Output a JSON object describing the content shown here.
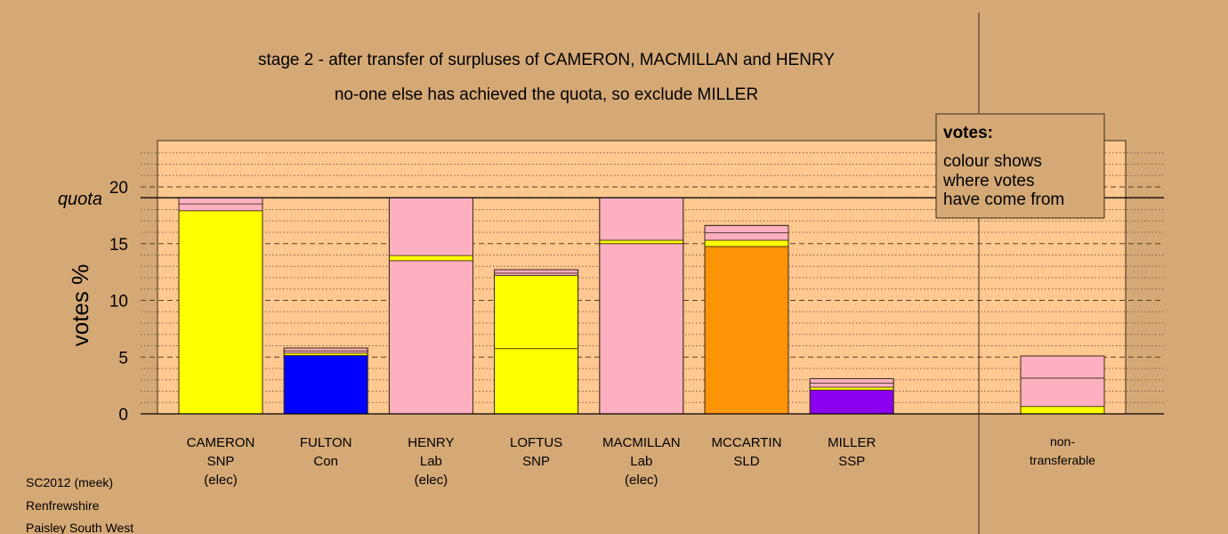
{
  "header": {
    "title": "stage 2 - after transfer of surpluses of CAMERON, MACMILLAN and HENRY",
    "subtitle": "no-one else has achieved the quota, so exclude MILLER"
  },
  "legend": {
    "title": "votes:",
    "lines": [
      "colour shows",
      "where votes",
      "have come from"
    ]
  },
  "footer": {
    "lines": [
      "SC2012 (meek)",
      "Renfrewshire",
      "Paisley South West"
    ]
  },
  "chart_data": {
    "type": "bar",
    "stacked": true,
    "ylabel": "votes %",
    "ylim": [
      0,
      23.5
    ],
    "yticks": [
      0,
      5,
      10,
      15,
      20
    ],
    "quota": 19.05,
    "quota_label": "quota",
    "grid": "dotted minor lines every 1, dashed major lines every 5",
    "colors": {
      "SNP": "#ffff00",
      "Con": "#0000ff",
      "Lab": "#ffb0c0",
      "SLD": "#ff9408",
      "SSP": "#8b00ee"
    },
    "candidates": [
      {
        "name": "CAMERON",
        "party": "SNP",
        "status": "(elec)",
        "segments": [
          {
            "from": "SNP",
            "value": 17.9
          },
          {
            "from": "Lab",
            "value": 0.6
          },
          {
            "from": "Lab",
            "value": 0.55
          }
        ]
      },
      {
        "name": "FULTON",
        "party": "Con",
        "status": "",
        "segments": [
          {
            "from": "Con",
            "value": 5.15
          },
          {
            "from": "SNP",
            "value": 0.2
          },
          {
            "from": "Lab",
            "value": 0.2
          },
          {
            "from": "Lab",
            "value": 0.25
          }
        ]
      },
      {
        "name": "HENRY",
        "party": "Lab",
        "status": "(elec)",
        "segments": [
          {
            "from": "Lab",
            "value": 13.5
          },
          {
            "from": "SNP",
            "value": 0.45
          },
          {
            "from": "Lab",
            "value": 5.1
          }
        ]
      },
      {
        "name": "LOFTUS",
        "party": "SNP",
        "status": "",
        "segments": [
          {
            "from": "SNP",
            "value": 5.75
          },
          {
            "from": "SNP",
            "value": 6.45
          },
          {
            "from": "Lab",
            "value": 0.2
          },
          {
            "from": "Lab",
            "value": 0.3
          }
        ]
      },
      {
        "name": "MACMILLAN",
        "party": "Lab",
        "status": "(elec)",
        "segments": [
          {
            "from": "Lab",
            "value": 15.0
          },
          {
            "from": "SNP",
            "value": 0.3
          },
          {
            "from": "Lab",
            "value": 3.75
          }
        ]
      },
      {
        "name": "MCCARTIN",
        "party": "SLD",
        "status": "",
        "segments": [
          {
            "from": "SLD",
            "value": 14.75
          },
          {
            "from": "SNP",
            "value": 0.55
          },
          {
            "from": "Lab",
            "value": 0.65
          },
          {
            "from": "Lab",
            "value": 0.65
          }
        ]
      },
      {
        "name": "MILLER",
        "party": "SSP",
        "status": "",
        "segments": [
          {
            "from": "SSP",
            "value": 2.1
          },
          {
            "from": "SNP",
            "value": 0.25
          },
          {
            "from": "Lab",
            "value": 0.35
          },
          {
            "from": "Lab",
            "value": 0.4
          }
        ]
      }
    ],
    "nontransferable": {
      "label_lines": [
        "non-",
        "transferable"
      ],
      "segments": [
        {
          "from": "SNP",
          "value": 0.65
        },
        {
          "from": "Lab",
          "value": 2.5
        },
        {
          "from": "Lab",
          "value": 1.95
        }
      ]
    }
  }
}
